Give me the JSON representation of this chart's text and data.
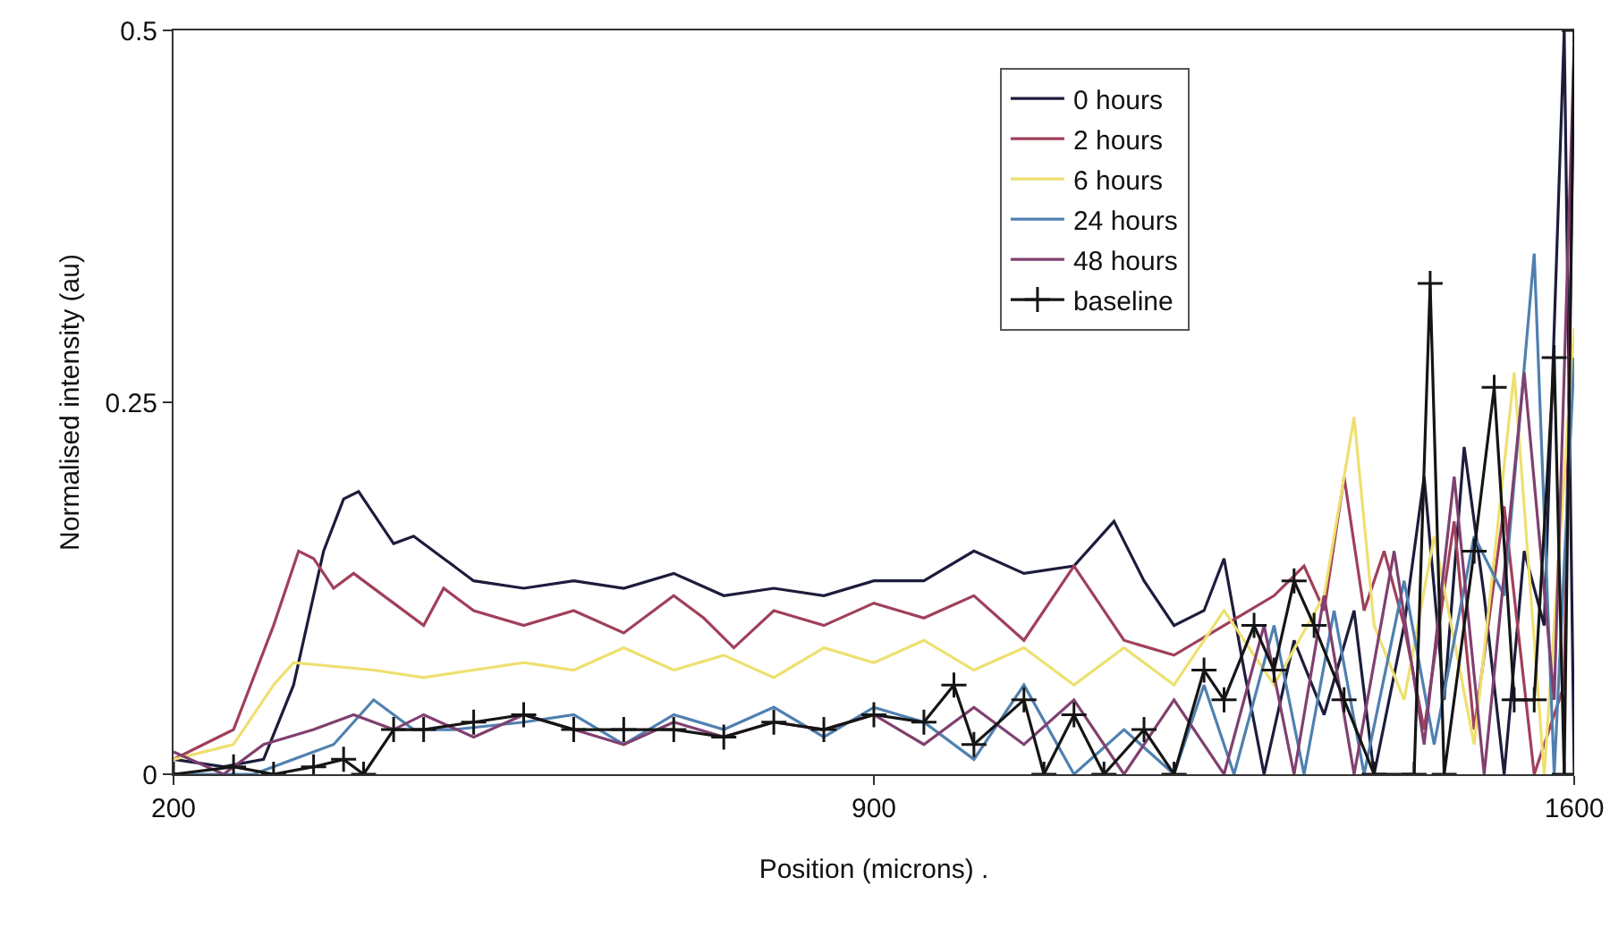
{
  "chart_data": {
    "type": "line",
    "xlabel": "Position (microns) .",
    "ylabel": "Normalised intensity (au)",
    "xlim": [
      200,
      1600
    ],
    "xticks": [
      200,
      900,
      1600
    ],
    "ylim": [
      0,
      0.5
    ],
    "yticks": [
      0,
      0.25,
      0.5
    ],
    "grid": false,
    "legend": "top right",
    "line_style": "solid",
    "series": [
      {
        "name": "0 hours",
        "color": "#1c1c3c",
        "x": [
          200,
          250,
          290,
          320,
          350,
          370,
          385,
          400,
          420,
          440,
          470,
          500,
          550,
          600,
          650,
          700,
          750,
          800,
          850,
          900,
          950,
          1000,
          1050,
          1100,
          1140,
          1170,
          1200,
          1230,
          1250,
          1270,
          1290,
          1320,
          1350,
          1380,
          1400,
          1430,
          1450,
          1470,
          1490,
          1510,
          1530,
          1550,
          1570,
          1590,
          1600
        ],
        "values": [
          0.01,
          0.005,
          0.01,
          0.06,
          0.15,
          0.185,
          0.19,
          0.175,
          0.155,
          0.16,
          0.145,
          0.13,
          0.125,
          0.13,
          0.125,
          0.135,
          0.12,
          0.125,
          0.12,
          0.13,
          0.13,
          0.15,
          0.135,
          0.14,
          0.17,
          0.13,
          0.1,
          0.11,
          0.145,
          0.07,
          0,
          0.09,
          0.04,
          0.11,
          0,
          0.1,
          0.2,
          0.05,
          0.22,
          0.12,
          0,
          0.15,
          0.1,
          0.5,
          0
        ]
      },
      {
        "name": "2 hours",
        "color": "#a0405a",
        "x": [
          200,
          260,
          300,
          325,
          340,
          360,
          380,
          420,
          450,
          470,
          500,
          550,
          600,
          650,
          700,
          730,
          760,
          800,
          850,
          900,
          950,
          1000,
          1050,
          1100,
          1150,
          1200,
          1250,
          1300,
          1330,
          1350,
          1370,
          1390,
          1410,
          1430,
          1450,
          1480,
          1500,
          1530,
          1560,
          1590,
          1600
        ],
        "values": [
          0.01,
          0.03,
          0.1,
          0.15,
          0.145,
          0.125,
          0.135,
          0.115,
          0.1,
          0.125,
          0.11,
          0.1,
          0.11,
          0.095,
          0.12,
          0.105,
          0.085,
          0.11,
          0.1,
          0.115,
          0.105,
          0.12,
          0.09,
          0.14,
          0.09,
          0.08,
          0.1,
          0.12,
          0.14,
          0.11,
          0.2,
          0.11,
          0.15,
          0.1,
          0.03,
          0.17,
          0.03,
          0.18,
          0,
          0.06,
          0.49
        ]
      },
      {
        "name": "6 hours",
        "color": "#eee070",
        "x": [
          200,
          260,
          300,
          320,
          400,
          450,
          500,
          550,
          600,
          650,
          700,
          750,
          800,
          850,
          900,
          950,
          1000,
          1050,
          1100,
          1150,
          1200,
          1250,
          1300,
          1350,
          1380,
          1400,
          1430,
          1460,
          1500,
          1540,
          1570,
          1600
        ],
        "values": [
          0.01,
          0.02,
          0.06,
          0.075,
          0.07,
          0.065,
          0.07,
          0.075,
          0.07,
          0.085,
          0.07,
          0.08,
          0.065,
          0.085,
          0.075,
          0.09,
          0.07,
          0.085,
          0.06,
          0.085,
          0.06,
          0.11,
          0.06,
          0.12,
          0.24,
          0.1,
          0.05,
          0.16,
          0.02,
          0.27,
          0,
          0.3
        ]
      },
      {
        "name": "24 hours",
        "color": "#5080b0",
        "x": [
          200,
          280,
          320,
          360,
          400,
          440,
          480,
          550,
          600,
          650,
          700,
          750,
          800,
          850,
          900,
          950,
          1000,
          1050,
          1100,
          1150,
          1200,
          1230,
          1260,
          1300,
          1330,
          1360,
          1390,
          1430,
          1460,
          1500,
          1530,
          1560,
          1580,
          1600
        ],
        "values": [
          0,
          0,
          0.01,
          0.02,
          0.05,
          0.03,
          0.03,
          0.035,
          0.04,
          0.02,
          0.04,
          0.03,
          0.045,
          0.025,
          0.045,
          0.035,
          0.01,
          0.06,
          0,
          0.03,
          0,
          0.06,
          0,
          0.1,
          0,
          0.11,
          0,
          0.13,
          0.02,
          0.16,
          0.12,
          0.35,
          0,
          0.28
        ]
      },
      {
        "name": "48 hours",
        "color": "#804070",
        "x": [
          200,
          250,
          290,
          340,
          380,
          420,
          450,
          500,
          550,
          600,
          650,
          700,
          750,
          800,
          850,
          900,
          950,
          1000,
          1050,
          1100,
          1150,
          1200,
          1250,
          1290,
          1320,
          1350,
          1380,
          1420,
          1450,
          1480,
          1510,
          1550,
          1580,
          1600
        ],
        "values": [
          0.015,
          0,
          0.02,
          0.03,
          0.04,
          0.03,
          0.04,
          0.025,
          0.04,
          0.03,
          0.02,
          0.035,
          0.025,
          0.035,
          0.03,
          0.04,
          0.02,
          0.045,
          0.02,
          0.05,
          0,
          0.05,
          0,
          0.1,
          0,
          0.12,
          0,
          0.15,
          0.02,
          0.2,
          0,
          0.27,
          0.05,
          0.49
        ]
      },
      {
        "name": "baseline",
        "color": "#151515",
        "marker": "cross",
        "x": [
          200,
          260,
          300,
          340,
          370,
          390,
          420,
          450,
          500,
          550,
          600,
          650,
          700,
          750,
          800,
          850,
          900,
          950,
          980,
          1000,
          1050,
          1070,
          1100,
          1130,
          1170,
          1200,
          1230,
          1250,
          1280,
          1300,
          1320,
          1340,
          1370,
          1400,
          1440,
          1456,
          1470,
          1500,
          1520,
          1540,
          1560,
          1580,
          1590,
          1600
        ],
        "values": [
          0,
          0.005,
          0,
          0.005,
          0.01,
          0,
          0.03,
          0.03,
          0.035,
          0.04,
          0.03,
          0.03,
          0.03,
          0.025,
          0.035,
          0.03,
          0.04,
          0.035,
          0.06,
          0.02,
          0.05,
          0,
          0.04,
          0,
          0.03,
          0,
          0.07,
          0.05,
          0.1,
          0.07,
          0.13,
          0.1,
          0.05,
          0,
          0,
          0.33,
          0,
          0.15,
          0.26,
          0.05,
          0.05,
          0.28,
          0,
          0.5
        ]
      }
    ]
  }
}
